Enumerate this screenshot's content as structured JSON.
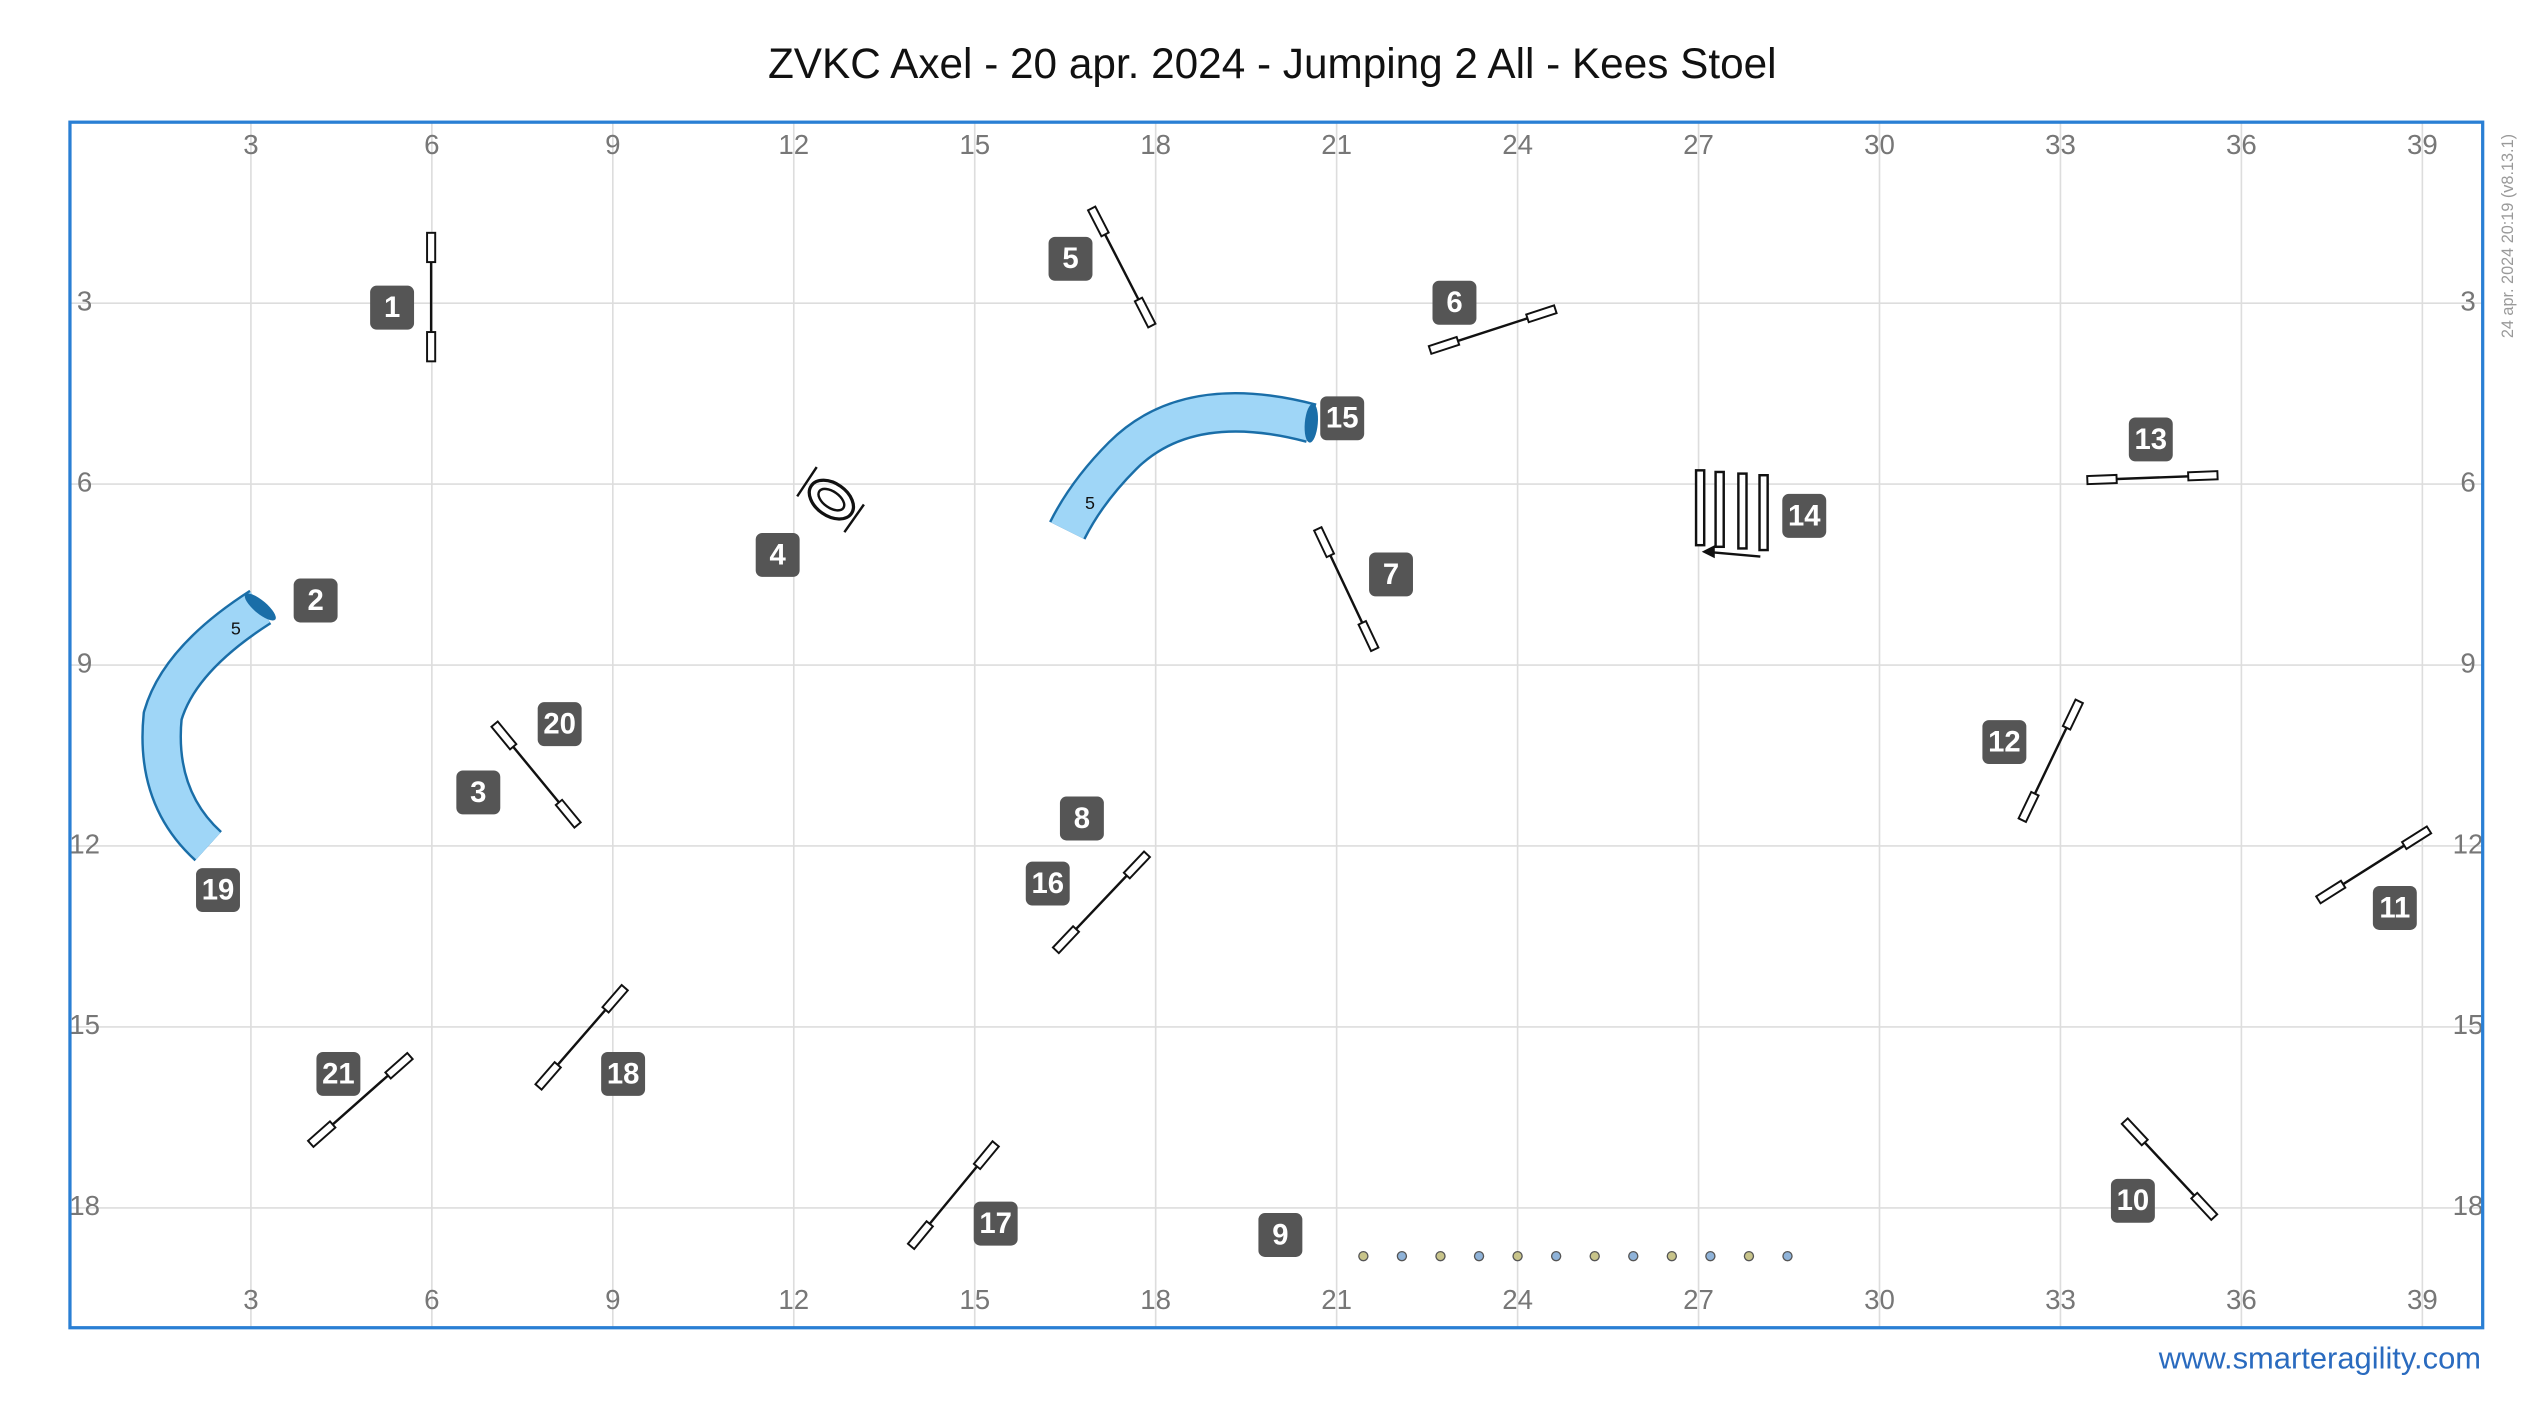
{
  "title": "ZVKC Axel - 20 apr. 2024 - Jumping 2 All - Kees Stoel",
  "timestamp": "24 apr. 2024 20:19 (v8.13.1)",
  "footer": "www.smarteragility.com",
  "grid": {
    "x_ticks": [
      3,
      6,
      9,
      12,
      15,
      18,
      21,
      24,
      27,
      30,
      33,
      36,
      39
    ],
    "y_ticks": [
      3,
      6,
      9,
      12,
      15,
      18
    ]
  },
  "obstacles": [
    {
      "number": "1"
    },
    {
      "number": "2"
    },
    {
      "number": "3"
    },
    {
      "number": "4"
    },
    {
      "number": "5"
    },
    {
      "number": "6"
    },
    {
      "number": "7"
    },
    {
      "number": "8"
    },
    {
      "number": "9"
    },
    {
      "number": "10"
    },
    {
      "number": "11"
    },
    {
      "number": "12"
    },
    {
      "number": "13"
    },
    {
      "number": "14"
    },
    {
      "number": "15"
    },
    {
      "number": "16"
    },
    {
      "number": "17"
    },
    {
      "number": "18"
    },
    {
      "number": "19"
    },
    {
      "number": "20"
    },
    {
      "number": "21"
    }
  ],
  "tunnel_labels": [
    "5",
    "5"
  ]
}
